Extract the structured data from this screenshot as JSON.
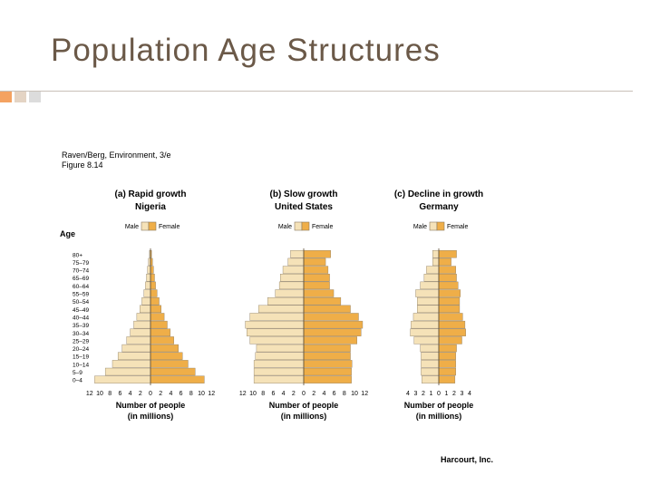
{
  "slide": {
    "title": "Population Age Structures",
    "source_line1": "Raven/Berg, Environment, 3/e",
    "source_line2": "Figure 8.14",
    "credit": "Harcourt, Inc.",
    "age_heading": "Age"
  },
  "colors": {
    "male": "#f5e2b8",
    "female": "#efae48",
    "stroke": "#8a7a60",
    "title": "#6b5948",
    "accent": "#f4a261"
  },
  "chart_data": [
    {
      "type": "bar",
      "orientation": "population-pyramid",
      "title": "(a) Rapid growth",
      "subtitle": "Nigeria",
      "legend": [
        "Male",
        "Female"
      ],
      "ylabel": "Age",
      "xlabel": "Number of people",
      "xlabel2": "(in millions)",
      "xlim": [
        -12,
        12
      ],
      "xticks": [
        "12",
        "10",
        "8",
        "6",
        "4",
        "2",
        "0",
        "2",
        "4",
        "6",
        "8",
        "10",
        "12"
      ],
      "categories": [
        "0–4",
        "5–9",
        "10–14",
        "15–19",
        "20–24",
        "25–29",
        "30–34",
        "35–39",
        "40–44",
        "45–49",
        "50–54",
        "55–59",
        "60–64",
        "65–69",
        "70–74",
        "75–79",
        "80+"
      ],
      "series": [
        {
          "name": "Male",
          "values": [
            11.0,
            8.9,
            7.5,
            6.4,
            5.6,
            4.7,
            4.0,
            3.3,
            2.7,
            2.1,
            1.7,
            1.3,
            1.0,
            0.8,
            0.6,
            0.4,
            0.2
          ]
        },
        {
          "name": "Female",
          "values": [
            10.6,
            8.8,
            7.4,
            6.3,
            5.5,
            4.6,
            3.9,
            3.3,
            2.7,
            2.1,
            1.7,
            1.3,
            1.0,
            0.8,
            0.6,
            0.4,
            0.2
          ]
        }
      ]
    },
    {
      "type": "bar",
      "orientation": "population-pyramid",
      "title": "(b) Slow growth",
      "subtitle": "United States",
      "legend": [
        "Male",
        "Female"
      ],
      "xlabel": "Number of people",
      "xlabel2": "(in millions)",
      "xlim": [
        -12,
        12
      ],
      "xticks": [
        "12",
        "10",
        "8",
        "6",
        "4",
        "2",
        "0",
        "2",
        "4",
        "6",
        "8",
        "10",
        "12"
      ],
      "categories": [
        "0–4",
        "5–9",
        "10–14",
        "15–19",
        "20–24",
        "25–29",
        "30–34",
        "35–39",
        "40–44",
        "45–49",
        "50–54",
        "55–59",
        "60–64",
        "65–69",
        "70–74",
        "75–79",
        "80+"
      ],
      "series": [
        {
          "name": "Male",
          "values": [
            9.8,
            9.8,
            9.8,
            9.5,
            9.3,
            10.6,
            11.2,
            11.5,
            10.6,
            8.9,
            7.1,
            5.6,
            4.8,
            4.6,
            4.1,
            3.1,
            2.6
          ]
        },
        {
          "name": "Female",
          "values": [
            9.4,
            9.4,
            9.5,
            9.2,
            9.2,
            10.5,
            11.3,
            11.6,
            10.8,
            9.2,
            7.3,
            5.9,
            5.1,
            5.1,
            4.8,
            4.3,
            5.3
          ]
        }
      ]
    },
    {
      "type": "bar",
      "orientation": "population-pyramid",
      "title": "(c) Decline in growth",
      "subtitle": "Germany",
      "legend": [
        "Male",
        "Female"
      ],
      "xlabel": "Number of people",
      "xlabel2": "(in millions)",
      "xlim": [
        -4,
        4
      ],
      "xticks": [
        "4",
        "3",
        "2",
        "1",
        "0",
        "1",
        "2",
        "3",
        "4"
      ],
      "categories": [
        "0–4",
        "5–9",
        "10–14",
        "15–19",
        "20–24",
        "25–29",
        "30–34",
        "35–39",
        "40–44",
        "45–49",
        "50–54",
        "55–59",
        "60–64",
        "65–69",
        "70–74",
        "75–79",
        "80+"
      ],
      "series": [
        {
          "name": "Male",
          "values": [
            2.2,
            2.3,
            2.3,
            2.3,
            2.4,
            3.2,
            3.7,
            3.6,
            3.3,
            2.8,
            2.8,
            3.0,
            2.4,
            1.9,
            1.6,
            0.8,
            0.8
          ]
        },
        {
          "name": "Female",
          "values": [
            2.1,
            2.2,
            2.2,
            2.2,
            2.3,
            3.0,
            3.5,
            3.4,
            3.1,
            2.7,
            2.7,
            2.8,
            2.5,
            2.3,
            2.2,
            1.6,
            2.3
          ]
        }
      ]
    }
  ]
}
